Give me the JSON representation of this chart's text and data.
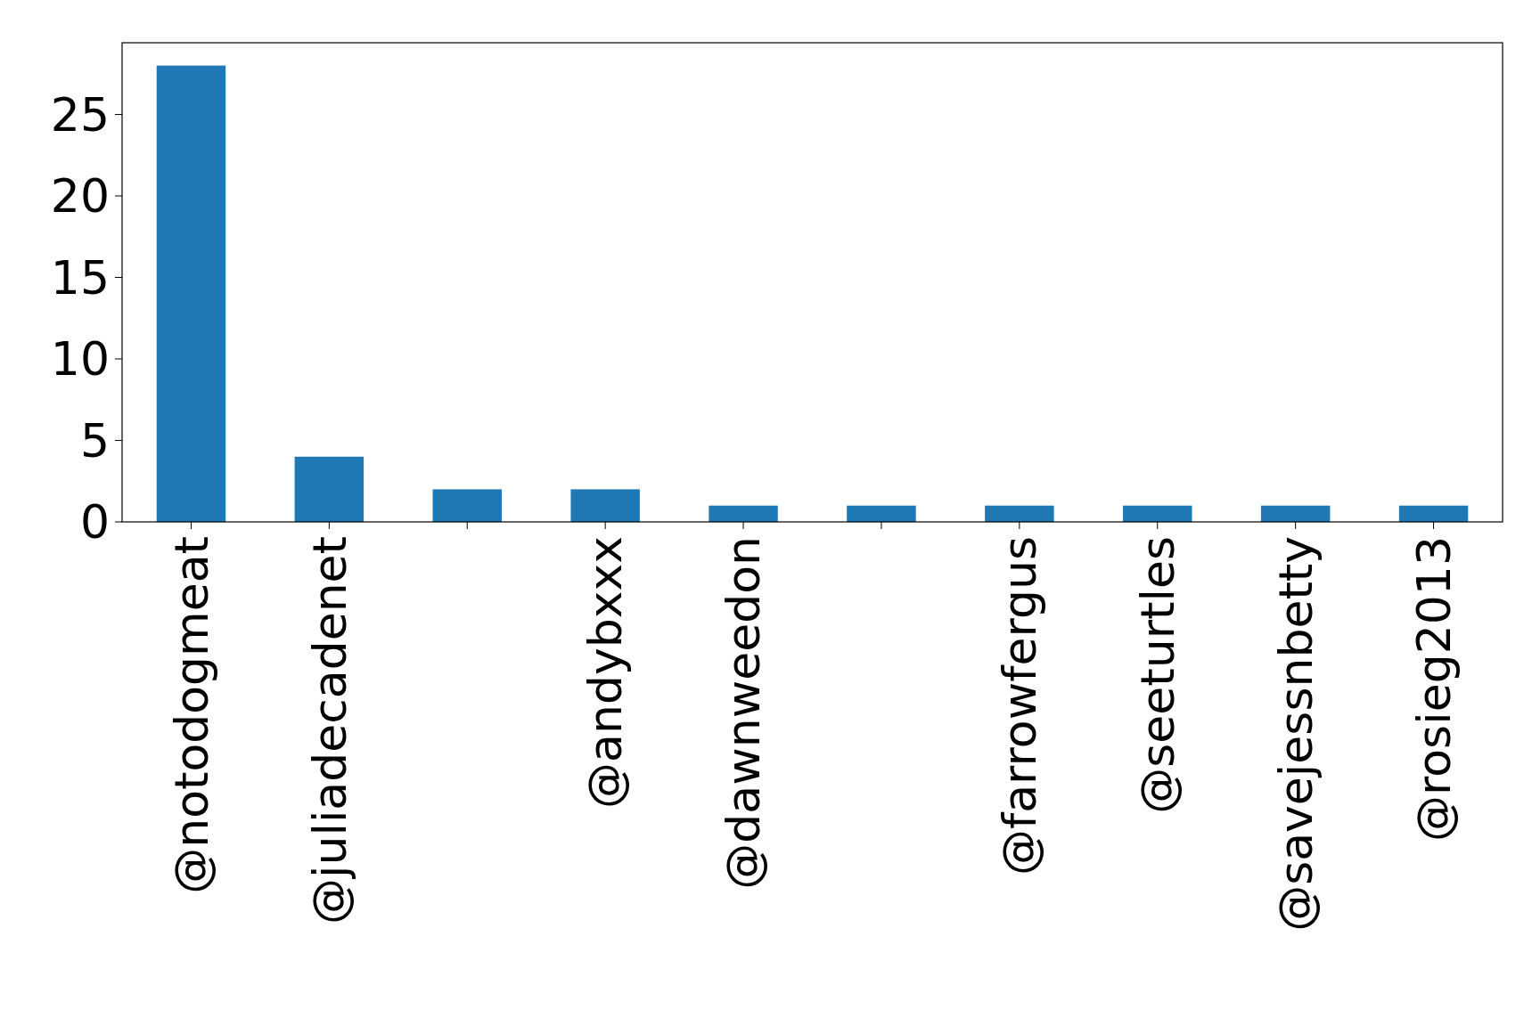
{
  "chart_data": {
    "type": "bar",
    "categories": [
      "@notodogmeat",
      "@juliadecadenet",
      null,
      "@andybxxx",
      "@dawnweedon",
      null,
      "@farrowfergus",
      "@seeturtles",
      "@savejessnbetty",
      "@rosieg2013"
    ],
    "values": [
      28,
      4,
      2,
      2,
      1,
      1,
      1,
      1,
      1,
      1
    ],
    "color": "#1f77b4",
    "ylim": [
      0,
      29.4
    ],
    "yticks": [
      0,
      5,
      10,
      15,
      20,
      25
    ],
    "grid": false
  }
}
